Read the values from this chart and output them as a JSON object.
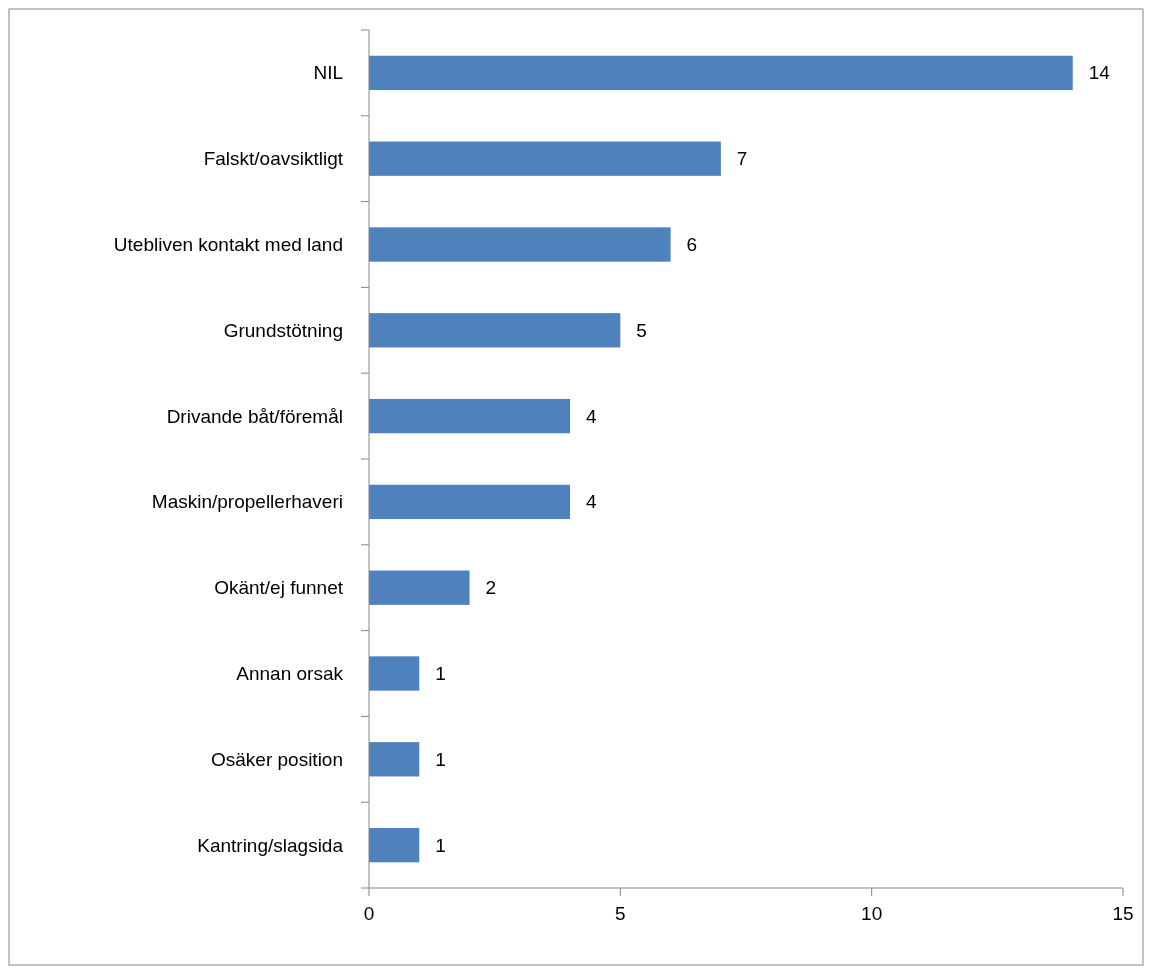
{
  "chart_data": {
    "type": "bar",
    "orientation": "horizontal",
    "categories": [
      "NIL",
      "Falskt/oavsiktligt",
      "Utebliven kontakt med land",
      "Grundstötning",
      "Drivande båt/föremål",
      "Maskin/propellerhaveri",
      "Okänt/ej funnet",
      "Annan orsak",
      "Osäker position",
      "Kantring/slagsida"
    ],
    "values": [
      14,
      7,
      6,
      5,
      4,
      4,
      2,
      1,
      1,
      1
    ],
    "color": "#4f81bd",
    "xlim": [
      0,
      15
    ],
    "xticks": [
      0,
      5,
      10,
      15
    ],
    "data_labels": true,
    "grid": false
  }
}
